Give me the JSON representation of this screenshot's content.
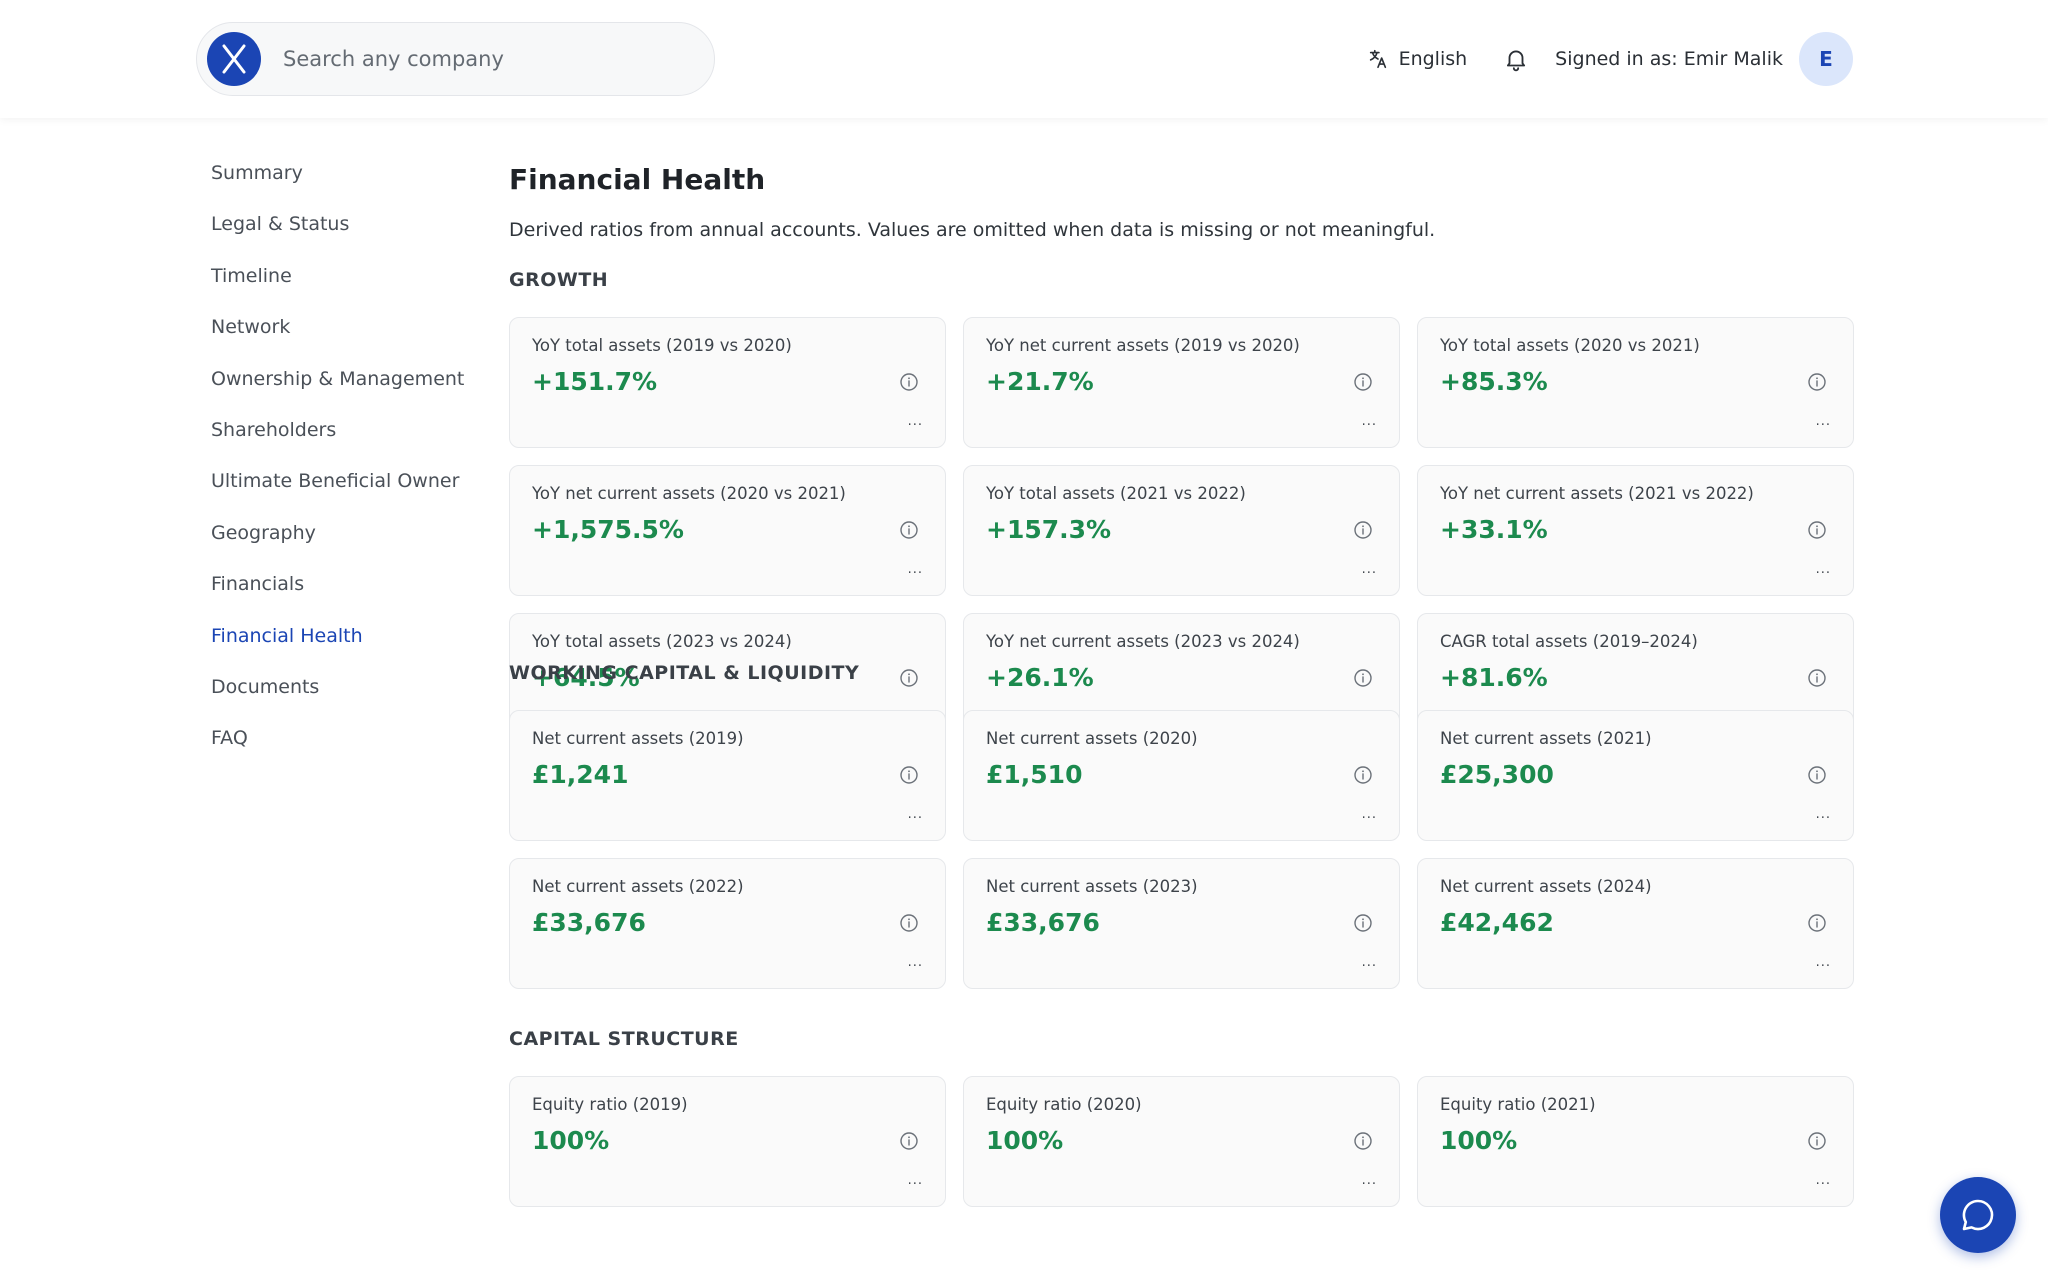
{
  "header": {
    "search_placeholder": "Search any company",
    "language": "English",
    "signed_in": "Signed in as: Emir Malik",
    "avatar_initial": "E"
  },
  "sidebar": {
    "items": [
      {
        "label": "Summary",
        "active": false
      },
      {
        "label": "Legal & Status",
        "active": false
      },
      {
        "label": "Timeline",
        "active": false
      },
      {
        "label": "Network",
        "active": false
      },
      {
        "label": "Ownership & Management",
        "active": false
      },
      {
        "label": "Shareholders",
        "active": false
      },
      {
        "label": "Ultimate Beneficial Owner",
        "active": false
      },
      {
        "label": "Geography",
        "active": false
      },
      {
        "label": "Financials",
        "active": false
      },
      {
        "label": "Financial Health",
        "active": true
      },
      {
        "label": "Documents",
        "active": false
      },
      {
        "label": "FAQ",
        "active": false
      }
    ]
  },
  "main": {
    "title": "Financial Health",
    "subtitle": "Derived ratios from annual accounts. Values are omitted when data is missing or not meaningful.",
    "sections": [
      {
        "title": "GROWTH",
        "cards": [
          {
            "label": "YoY total assets (2019 vs 2020)",
            "value": "+151.7%",
            "more": "..."
          },
          {
            "label": "YoY net current assets (2019 vs 2020)",
            "value": "+21.7%",
            "more": "..."
          },
          {
            "label": "YoY total assets (2020 vs 2021)",
            "value": "+85.3%",
            "more": "..."
          },
          {
            "label": "YoY net current assets (2020 vs 2021)",
            "value": "+1,575.5%",
            "more": "..."
          },
          {
            "label": "YoY total assets (2021 vs 2022)",
            "value": "+157.3%",
            "more": "..."
          },
          {
            "label": "YoY net current assets (2021 vs 2022)",
            "value": "+33.1%",
            "more": "..."
          },
          {
            "label": "YoY total assets (2023 vs 2024)",
            "value": "+64.5%",
            "more": "..."
          },
          {
            "label": "YoY net current assets (2023 vs 2024)",
            "value": "+26.1%",
            "more": "..."
          },
          {
            "label": "CAGR total assets (2019–2024)",
            "value": "+81.6%",
            "more": "..."
          }
        ]
      },
      {
        "title": "WORKING CAPITAL & LIQUIDITY",
        "cards": [
          {
            "label": "Net current assets (2019)",
            "value": "£1,241",
            "more": "..."
          },
          {
            "label": "Net current assets (2020)",
            "value": "£1,510",
            "more": "..."
          },
          {
            "label": "Net current assets (2021)",
            "value": "£25,300",
            "more": "..."
          },
          {
            "label": "Net current assets (2022)",
            "value": "£33,676",
            "more": "..."
          },
          {
            "label": "Net current assets (2023)",
            "value": "£33,676",
            "more": "..."
          },
          {
            "label": "Net current assets (2024)",
            "value": "£42,462",
            "more": "..."
          }
        ]
      },
      {
        "title": "CAPITAL STRUCTURE",
        "cards": [
          {
            "label": "Equity ratio (2019)",
            "value": "100%",
            "more": "..."
          },
          {
            "label": "Equity ratio (2020)",
            "value": "100%",
            "more": "..."
          },
          {
            "label": "Equity ratio (2021)",
            "value": "100%",
            "more": "..."
          }
        ]
      }
    ]
  },
  "colors": {
    "brand": "#1b45b4",
    "positive": "#1c8a4e",
    "active_nav": "#1b45b4"
  },
  "icons": {
    "logo": "x-logo-icon",
    "language": "translate-icon",
    "notifications": "bell-icon",
    "info": "info-icon",
    "chat": "chat-bubble-icon"
  }
}
